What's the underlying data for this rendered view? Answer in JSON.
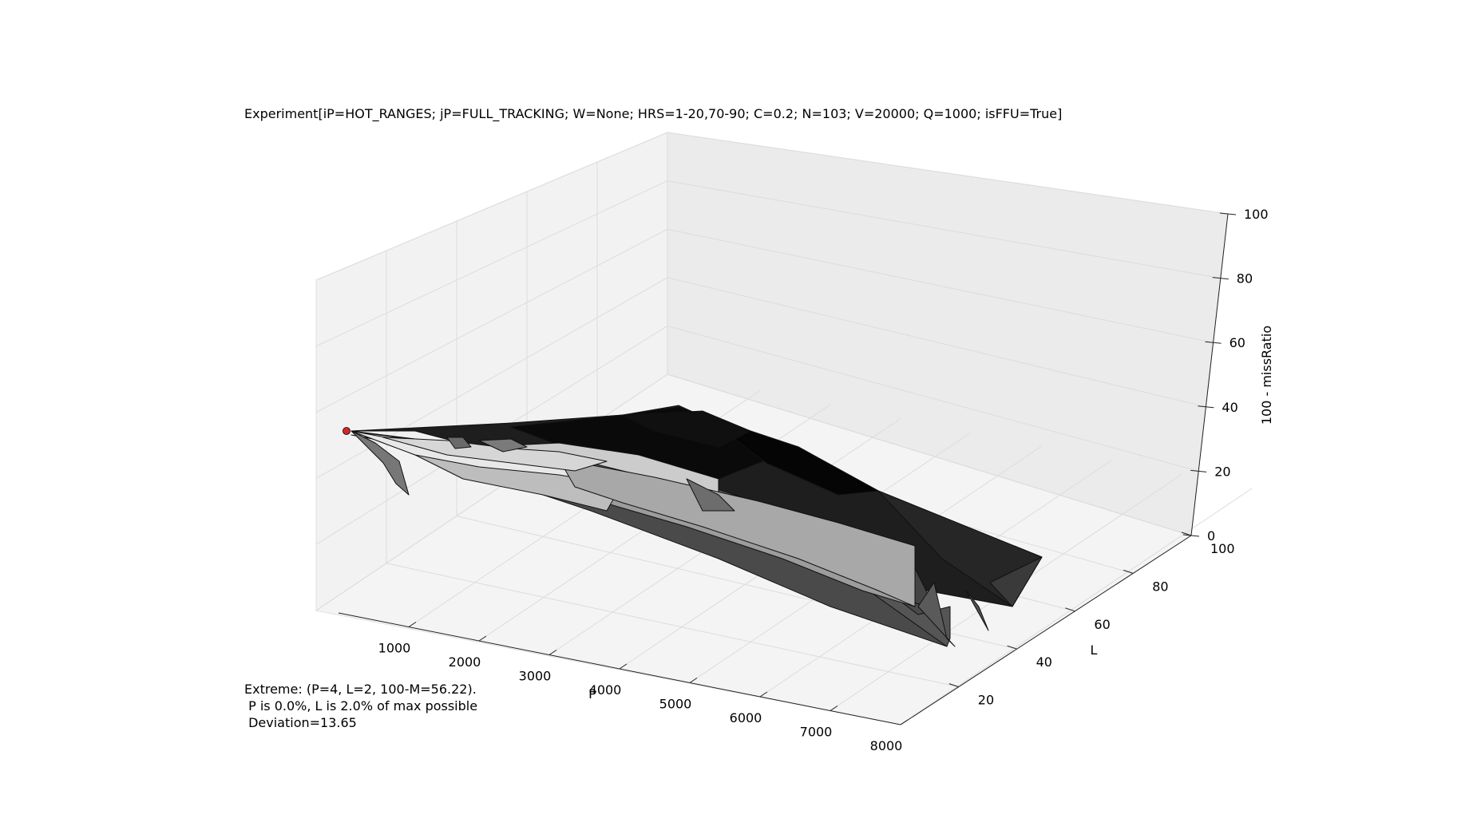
{
  "chart_data": {
    "type": "surface3d",
    "title": "Experiment[iP=HOT_RANGES; jP=FULL_TRACKING; W=None; HRS=1-20,70-90; C=0.2; N=103; V=20000; Q=1000; isFFU=True]",
    "xlabel": "P",
    "ylabel": "L",
    "zlabel": "100 - missRatio",
    "x_ticks": [
      1000,
      2000,
      3000,
      4000,
      5000,
      6000,
      7000,
      8000
    ],
    "y_ticks": [
      20,
      40,
      60,
      80,
      100
    ],
    "z_ticks": [
      0,
      20,
      40,
      60,
      80,
      100
    ],
    "xlim": [
      0,
      8000
    ],
    "ylim": [
      0,
      100
    ],
    "zlim": [
      0,
      100
    ],
    "grid": true,
    "colormap": "grayscale",
    "extreme_point": {
      "P": 4,
      "L": 2,
      "value": 56.22,
      "color": "#d62728"
    },
    "surface_samples": [
      {
        "P": 0,
        "L": 2,
        "z": 56
      },
      {
        "P": 0,
        "L": 50,
        "z": 45
      },
      {
        "P": 0,
        "L": 100,
        "z": 40
      },
      {
        "P": 4000,
        "L": 2,
        "z": 34
      },
      {
        "P": 4000,
        "L": 50,
        "z": 36
      },
      {
        "P": 4000,
        "L": 100,
        "z": 40
      },
      {
        "P": 8000,
        "L": 2,
        "z": 15
      },
      {
        "P": 8000,
        "L": 50,
        "z": 22
      },
      {
        "P": 8000,
        "L": 100,
        "z": 18
      }
    ],
    "annotation": [
      "Extreme: (P=4, L=2, 100-M=56.22).",
      " P is 0.0%, L is 2.0% of max possible",
      " Deviation=13.65"
    ]
  }
}
